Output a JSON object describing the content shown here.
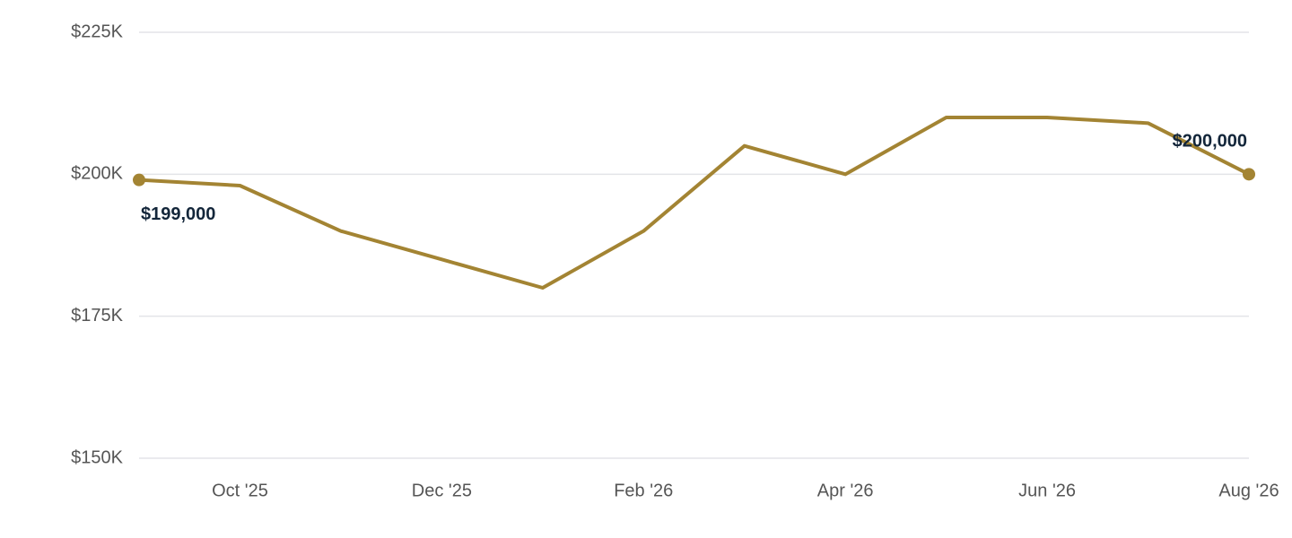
{
  "chart_data": {
    "type": "line",
    "categories": [
      null,
      "Oct '25",
      null,
      "Dec '25",
      null,
      "Feb '26",
      null,
      "Apr '26",
      null,
      "Jun '26",
      null,
      "Aug '26"
    ],
    "series": [
      {
        "color": "#a38433",
        "values": [
          199000,
          198000,
          190000,
          185000,
          180000,
          190000,
          205000,
          200000,
          210000,
          210000,
          209000,
          200000
        ],
        "value_labels": [
          "$199,000",
          null,
          null,
          null,
          null,
          null,
          null,
          null,
          null,
          null,
          null,
          "$200,000"
        ]
      }
    ],
    "ylim": [
      150000,
      225000
    ],
    "yticks": [
      {
        "value": 150000,
        "label": "$150K"
      },
      {
        "value": 175000,
        "label": "$175K"
      },
      {
        "value": 200000,
        "label": "$200K"
      },
      {
        "value": 225000,
        "label": "$225K"
      }
    ],
    "grid": true
  }
}
